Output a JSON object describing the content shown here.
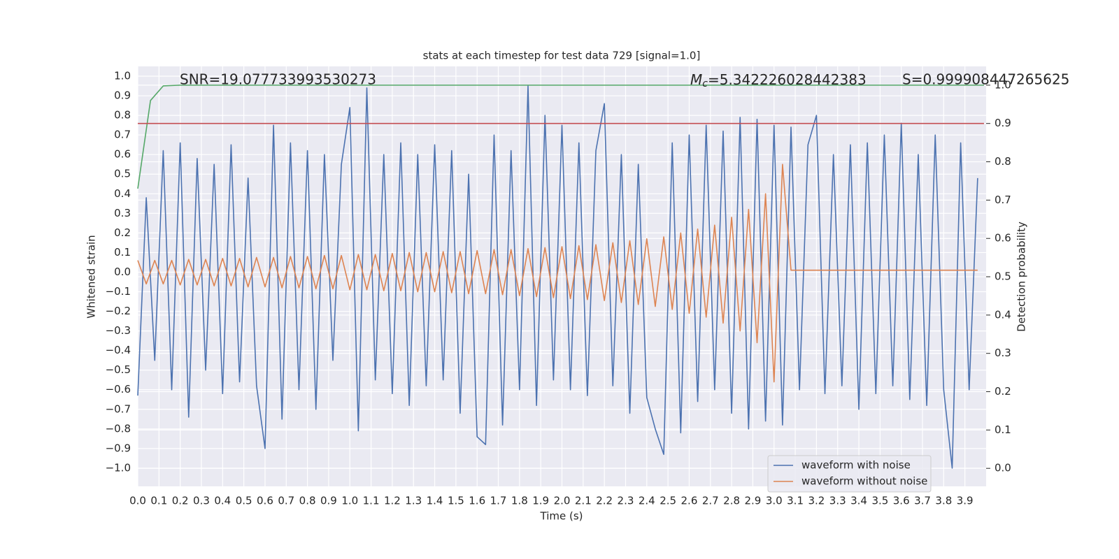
{
  "chart_data": {
    "type": "line",
    "title": "stats at each timestep for test data 729 [signal=1.0]",
    "x_label": "Time (s)",
    "y_label": "Whitened strain",
    "y2_label": "Detection probability",
    "annotations": [
      "SNR=19.077733993530273",
      {
        "symbol": "M",
        "subscript": "c",
        "text": "=5.342226028442383"
      },
      "S=0.999908447265625"
    ],
    "grid": true,
    "legend": "lower right",
    "xlim": [
      0,
      4.0
    ],
    "ylim": [
      -1.093,
      1.05
    ],
    "y2lim": [
      -0.047,
      1.049
    ],
    "xticks": [
      {
        "value": 0.0,
        "label": "0.0"
      },
      0.1,
      0.2,
      0.3,
      0.4,
      0.5,
      0.6,
      0.7,
      0.8,
      0.9,
      {
        "value": 1.0,
        "label": "1.0"
      },
      1.1,
      1.2,
      1.3,
      1.4,
      1.5,
      1.6,
      1.7,
      1.8,
      1.9,
      {
        "value": 2.0,
        "label": "2.0"
      },
      2.1,
      2.2,
      2.3,
      2.4,
      2.5,
      2.6,
      2.7,
      2.8,
      2.9,
      {
        "value": 3.0,
        "label": "3.0"
      },
      3.1,
      3.2,
      3.3,
      3.4,
      3.5,
      3.6,
      3.7,
      3.8,
      3.9
    ],
    "yticks": [
      {
        "value": -1.0,
        "label": "−1.0"
      },
      {
        "value": -0.9,
        "label": "−0.9"
      },
      {
        "value": -0.8,
        "label": "−0.8"
      },
      {
        "value": -0.7,
        "label": "−0.7"
      },
      {
        "value": -0.6,
        "label": "−0.6"
      },
      {
        "value": -0.5,
        "label": "−0.5"
      },
      {
        "value": -0.4,
        "label": "−0.4"
      },
      {
        "value": -0.3,
        "label": "−0.3"
      },
      {
        "value": -0.2,
        "label": "−0.2"
      },
      {
        "value": -0.1,
        "label": "−0.1"
      },
      {
        "value": 0.0,
        "label": "0.0"
      },
      0.1,
      0.2,
      0.3,
      0.4,
      0.5,
      0.6,
      0.7,
      0.8,
      0.9,
      {
        "value": 1.0,
        "label": "1.0"
      }
    ],
    "y2ticks": [
      {
        "value": 0.0,
        "label": "0.0"
      },
      0.1,
      0.2,
      0.3,
      0.4,
      0.5,
      0.6,
      0.7,
      0.8,
      0.9,
      {
        "value": 1.0,
        "label": "1.0"
      }
    ],
    "x": [
      0,
      0.04,
      0.08,
      0.12,
      0.16,
      0.2,
      0.24,
      0.28,
      0.32,
      0.36,
      0.4,
      0.44,
      0.48,
      0.52,
      0.56,
      0.6,
      0.64,
      0.68,
      0.72,
      0.76,
      0.8,
      0.84,
      0.88,
      0.92,
      0.96,
      1.0,
      1.04,
      1.08,
      1.12,
      1.16,
      1.2,
      1.24,
      1.28,
      1.32,
      1.36,
      1.4,
      1.44,
      1.48,
      1.52,
      1.56,
      1.6,
      1.64,
      1.68,
      1.72,
      1.76,
      1.8,
      1.84,
      1.88,
      1.92,
      1.96,
      2.0,
      2.04,
      2.08,
      2.12,
      2.16,
      2.2,
      2.24,
      2.28,
      2.32,
      2.36,
      2.4,
      2.44,
      2.48,
      2.52,
      2.56,
      2.6,
      2.64,
      2.68,
      2.72,
      2.76,
      2.8,
      2.84,
      2.88,
      2.92,
      2.96,
      3.0,
      3.04,
      3.08,
      3.12,
      3.16,
      3.2,
      3.24,
      3.28,
      3.32,
      3.36,
      3.4,
      3.44,
      3.48,
      3.52,
      3.56,
      3.6,
      3.64,
      3.68,
      3.72,
      3.76,
      3.8,
      3.84,
      3.88,
      3.92,
      3.96
    ],
    "series": [
      {
        "name": "waveform with noise",
        "color": "#4c72b0",
        "values": [
          -0.63,
          0.38,
          -0.45,
          0.62,
          -0.6,
          0.66,
          -0.74,
          0.58,
          -0.5,
          0.55,
          -0.62,
          0.65,
          -0.56,
          0.48,
          -0.58,
          -0.9,
          0.75,
          -0.75,
          0.66,
          -0.6,
          0.62,
          -0.7,
          0.6,
          -0.45,
          0.55,
          0.84,
          -0.81,
          0.94,
          -0.55,
          0.6,
          -0.62,
          0.66,
          -0.68,
          0.6,
          -0.58,
          0.65,
          -0.55,
          0.62,
          -0.72,
          0.5,
          -0.84,
          -0.88,
          0.7,
          -0.78,
          0.62,
          -0.6,
          0.95,
          -0.68,
          0.8,
          -0.55,
          0.75,
          -0.6,
          0.66,
          -0.63,
          0.62,
          0.86,
          -0.58,
          0.6,
          -0.72,
          0.55,
          -0.64,
          -0.8,
          -0.93,
          0.66,
          -0.82,
          0.7,
          -0.66,
          0.75,
          -0.6,
          0.72,
          -0.72,
          0.79,
          -0.8,
          0.78,
          -0.76,
          0.75,
          -0.78,
          0.74,
          -0.6,
          0.65,
          0.8,
          -0.62,
          0.6,
          -0.58,
          0.65,
          -0.7,
          0.66,
          -0.62,
          0.7,
          -0.58,
          0.76,
          -0.65,
          0.6,
          -0.68,
          0.7,
          -0.6,
          -1.0,
          0.66,
          -0.6,
          0.48
        ]
      },
      {
        "name": "waveform without noise",
        "color": "#dd8452",
        "values": [
          0.06,
          -0.06,
          0.06,
          -0.06,
          0.06,
          -0.065,
          0.065,
          -0.065,
          0.065,
          -0.07,
          0.07,
          -0.07,
          0.07,
          -0.075,
          0.075,
          -0.075,
          0.075,
          -0.08,
          0.08,
          -0.08,
          0.08,
          -0.085,
          0.085,
          -0.085,
          0.085,
          -0.09,
          0.09,
          -0.09,
          0.09,
          -0.095,
          0.095,
          -0.095,
          0.1,
          -0.1,
          0.1,
          -0.1,
          0.105,
          -0.105,
          0.105,
          -0.11,
          0.11,
          -0.11,
          0.115,
          -0.115,
          0.115,
          -0.12,
          0.12,
          -0.125,
          0.125,
          -0.13,
          0.13,
          -0.135,
          0.135,
          -0.14,
          0.14,
          -0.145,
          0.15,
          -0.155,
          0.16,
          -0.165,
          0.17,
          -0.175,
          0.18,
          -0.19,
          0.2,
          -0.21,
          0.22,
          -0.23,
          0.24,
          -0.26,
          0.28,
          -0.3,
          0.32,
          -0.36,
          0.4,
          -0.56,
          0.55,
          0.01,
          0.01,
          0.01,
          0.01,
          0.01,
          0.01,
          0.01,
          0.01,
          0.01,
          0.01,
          0.01,
          0.01,
          0.01,
          0.01,
          0.01,
          0.01,
          0.01,
          0.01,
          0.01,
          0.01,
          0.01,
          0.01,
          0.01
        ]
      },
      {
        "color": "#55a868",
        "axis": "y2",
        "x": [
          0,
          0.06,
          0.12,
          0.2,
          3.99
        ],
        "values": [
          0.73,
          0.96,
          0.998,
          1.0,
          1.0
        ]
      },
      {
        "color": "#c44e52",
        "axis": "y2",
        "x": [
          0,
          3.99
        ],
        "values": [
          0.9,
          0.9
        ]
      }
    ]
  }
}
